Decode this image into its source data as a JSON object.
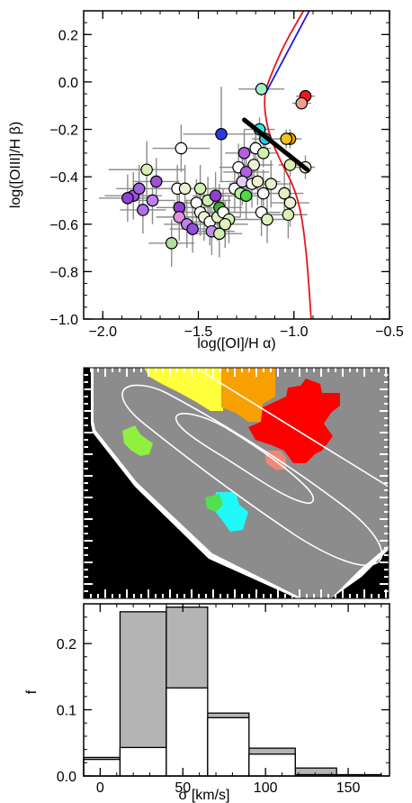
{
  "chart_data": [
    {
      "id": "bpt",
      "type": "scatter",
      "xlabel": "log([OI]/H α)",
      "ylabel": "log([OIII]/H β)",
      "xlim": [
        -2.1,
        -0.5
      ],
      "ylim": [
        -1.0,
        0.3
      ],
      "xticks": [
        -2.0,
        -1.5,
        -1.0,
        -0.5
      ],
      "xtick_labels": [
        "−2.0",
        "−1.5",
        "−1.0",
        "−0.5"
      ],
      "yticks": [
        -1.0,
        -0.8,
        -0.6,
        -0.4,
        -0.2,
        0.0,
        0.2
      ],
      "ytick_labels": [
        "−1.0",
        "−0.8",
        "−0.6",
        "−0.4",
        "−0.2",
        "0.0",
        "0.2"
      ],
      "colors": {
        "demarcation": "#e8141e",
        "seyfert_liner": "#1a1adc",
        "fit": "#000000",
        "errorbar": "#8c8c8c"
      },
      "demarcation_curve": [
        [
          -0.95,
          0.3
        ],
        [
          -1.05,
          0.16
        ],
        [
          -1.12,
          0.03
        ],
        [
          -1.16,
          -0.06
        ],
        [
          -1.14,
          -0.2
        ],
        [
          -1.08,
          -0.32
        ],
        [
          -1.0,
          -0.44
        ],
        [
          -0.96,
          -0.56
        ],
        [
          -0.935,
          -0.72
        ],
        [
          -0.92,
          -0.88
        ],
        [
          -0.91,
          -1.0
        ]
      ],
      "seyfert_liner_line": [
        [
          -1.15,
          -0.05
        ],
        [
          -0.92,
          0.3
        ]
      ],
      "fit_line": [
        [
          -1.26,
          -0.16
        ],
        [
          -0.93,
          -0.37
        ]
      ],
      "points": [
        {
          "x": -0.94,
          "y": -0.06,
          "c": "#f01414",
          "xe": 0.05,
          "ye": 0.02
        },
        {
          "x": -0.96,
          "y": -0.09,
          "c": "#f0a090",
          "xe": 0.05,
          "ye": 0.02
        },
        {
          "x": -1.17,
          "y": -0.03,
          "c": "#a0f0c8",
          "xe": 0.12,
          "ye": 0.03
        },
        {
          "x": -1.38,
          "y": -0.22,
          "c": "#2838e8",
          "xe": 0.2,
          "ye": 0.2
        },
        {
          "x": -1.18,
          "y": -0.2,
          "c": "#2ee8e8",
          "xe": 0.08,
          "ye": 0.05
        },
        {
          "x": -1.15,
          "y": -0.24,
          "c": "#30c8d8",
          "xe": 0.07,
          "ye": 0.05
        },
        {
          "x": -1.02,
          "y": -0.24,
          "c": "#f0a000",
          "xe": 0.06,
          "ye": 0.04
        },
        {
          "x": -1.04,
          "y": -0.24,
          "c": "#f0c020",
          "xe": 0.06,
          "ye": 0.04
        },
        {
          "x": -1.2,
          "y": -0.28,
          "c": "#ffffff",
          "xe": 0.08,
          "ye": 0.06
        },
        {
          "x": -1.16,
          "y": -0.3,
          "c": "#d0f0b0",
          "xe": 0.08,
          "ye": 0.06
        },
        {
          "x": -1.02,
          "y": -0.35,
          "c": "#d8f0b0",
          "xe": 0.06,
          "ye": 0.05
        },
        {
          "x": -0.94,
          "y": -0.36,
          "c": "#f0f0d0",
          "xe": 0.05,
          "ye": 0.05
        },
        {
          "x": -1.59,
          "y": -0.28,
          "c": "#ffffff",
          "xe": 0.15,
          "ye": 0.1
        },
        {
          "x": -1.77,
          "y": -0.37,
          "c": "#d8f0b0",
          "xe": 0.2,
          "ye": 0.12
        },
        {
          "x": -1.29,
          "y": -0.36,
          "c": "#ffffff",
          "xe": 0.1,
          "ye": 0.1
        },
        {
          "x": -1.21,
          "y": -0.35,
          "c": "#f0f0d8",
          "xe": 0.1,
          "ye": 0.1
        },
        {
          "x": -1.25,
          "y": -0.38,
          "c": "#b060e0",
          "xe": 0.12,
          "ye": 0.1
        },
        {
          "x": -1.84,
          "y": -0.48,
          "c": "#a050e0",
          "xe": 0.15,
          "ye": 0.1
        },
        {
          "x": -1.87,
          "y": -0.49,
          "c": "#9040d8",
          "xe": 0.15,
          "ye": 0.1
        },
        {
          "x": -1.81,
          "y": -0.45,
          "c": "#a060e0",
          "xe": 0.12,
          "ye": 0.1
        },
        {
          "x": -1.74,
          "y": -0.5,
          "c": "#c080f0",
          "xe": 0.12,
          "ye": 0.1
        },
        {
          "x": -1.79,
          "y": -0.54,
          "c": "#b070e8",
          "xe": 0.12,
          "ye": 0.1
        },
        {
          "x": -1.72,
          "y": -0.42,
          "c": "#a050d8",
          "xe": 0.12,
          "ye": 0.1
        },
        {
          "x": -1.61,
          "y": -0.45,
          "c": "#ffffff",
          "xe": 0.12,
          "ye": 0.1
        },
        {
          "x": -1.57,
          "y": -0.45,
          "c": "#f0f0d0",
          "xe": 0.12,
          "ye": 0.1
        },
        {
          "x": -1.6,
          "y": -0.53,
          "c": "#9040d0",
          "xe": 0.12,
          "ye": 0.1
        },
        {
          "x": -1.6,
          "y": -0.57,
          "c": "#e090e0",
          "xe": 0.12,
          "ye": 0.1
        },
        {
          "x": -1.56,
          "y": -0.6,
          "c": "#c080e8",
          "xe": 0.12,
          "ye": 0.1
        },
        {
          "x": -1.53,
          "y": -0.62,
          "c": "#9050d8",
          "xe": 0.12,
          "ye": 0.1
        },
        {
          "x": -1.64,
          "y": -0.68,
          "c": "#b0e0a0",
          "xe": 0.12,
          "ye": 0.1
        },
        {
          "x": -1.51,
          "y": -0.51,
          "c": "#ffffff",
          "xe": 0.12,
          "ye": 0.1
        },
        {
          "x": -1.49,
          "y": -0.45,
          "c": "#d0f0b0",
          "xe": 0.12,
          "ye": 0.1
        },
        {
          "x": -1.49,
          "y": -0.55,
          "c": "#ffffff",
          "xe": 0.12,
          "ye": 0.1
        },
        {
          "x": -1.47,
          "y": -0.57,
          "c": "#f0f0d8",
          "xe": 0.12,
          "ye": 0.1
        },
        {
          "x": -1.45,
          "y": -0.5,
          "c": "#d0f0b0",
          "xe": 0.12,
          "ye": 0.1
        },
        {
          "x": -1.44,
          "y": -0.59,
          "c": "#ffffff",
          "xe": 0.12,
          "ye": 0.1
        },
        {
          "x": -1.41,
          "y": -0.48,
          "c": "#9040d0",
          "xe": 0.12,
          "ye": 0.1
        },
        {
          "x": -1.43,
          "y": -0.63,
          "c": "#c090e8",
          "xe": 0.12,
          "ye": 0.1
        },
        {
          "x": -1.4,
          "y": -0.57,
          "c": "#e0f0c0",
          "xe": 0.12,
          "ye": 0.1
        },
        {
          "x": -1.39,
          "y": -0.53,
          "c": "#40a830",
          "xe": 0.12,
          "ye": 0.1
        },
        {
          "x": -1.37,
          "y": -0.55,
          "c": "#ffffff",
          "xe": 0.12,
          "ye": 0.1
        },
        {
          "x": -1.34,
          "y": -0.58,
          "c": "#d0f0b0",
          "xe": 0.12,
          "ye": 0.1
        },
        {
          "x": -1.36,
          "y": -0.6,
          "c": "#e0f0c0",
          "xe": 0.12,
          "ye": 0.1
        },
        {
          "x": -1.39,
          "y": -0.64,
          "c": "#d0f0b0",
          "xe": 0.12,
          "ye": 0.1
        },
        {
          "x": -1.31,
          "y": -0.45,
          "c": "#ffffff",
          "xe": 0.12,
          "ye": 0.1
        },
        {
          "x": -1.28,
          "y": -0.47,
          "c": "#b0f0a0",
          "xe": 0.12,
          "ye": 0.1
        },
        {
          "x": -1.25,
          "y": -0.48,
          "c": "#50d840",
          "xe": 0.12,
          "ye": 0.1
        },
        {
          "x": -1.27,
          "y": -0.42,
          "c": "#e0d0f0",
          "xe": 0.12,
          "ye": 0.1
        },
        {
          "x": -1.22,
          "y": -0.43,
          "c": "#ffffff",
          "xe": 0.12,
          "ye": 0.1
        },
        {
          "x": -1.19,
          "y": -0.42,
          "c": "#f0f0d0",
          "xe": 0.12,
          "ye": 0.1
        },
        {
          "x": -1.16,
          "y": -0.47,
          "c": "#ffffff",
          "xe": 0.12,
          "ye": 0.1
        },
        {
          "x": -1.12,
          "y": -0.43,
          "c": "#e8f0d0",
          "xe": 0.1,
          "ye": 0.1
        },
        {
          "x": -1.17,
          "y": -0.55,
          "c": "#ffffff",
          "xe": 0.1,
          "ye": 0.1
        },
        {
          "x": -1.14,
          "y": -0.58,
          "c": "#e0f0c0",
          "xe": 0.1,
          "ye": 0.1
        },
        {
          "x": -1.05,
          "y": -0.47,
          "c": "#e0f0c0",
          "xe": 0.1,
          "ye": 0.1
        },
        {
          "x": -1.02,
          "y": -0.51,
          "c": "#f0f0d8",
          "xe": 0.1,
          "ye": 0.1
        },
        {
          "x": -1.03,
          "y": -0.56,
          "c": "#d8f0b0",
          "xe": 0.1,
          "ye": 0.1
        },
        {
          "x": -1.26,
          "y": -0.3,
          "c": "#b060e0",
          "xe": 0.1,
          "ye": 0.1
        }
      ]
    },
    {
      "id": "map",
      "type": "heatmap",
      "colors": {
        "background": "#000000",
        "ring": "#ffffff",
        "disk": "#8c8c8c",
        "contour": "#ffffff"
      },
      "regions": [
        {
          "name": "yellow",
          "c": "#ffff3c"
        },
        {
          "name": "orange",
          "c": "#f8a000"
        },
        {
          "name": "red",
          "c": "#ff0000"
        },
        {
          "name": "salmon",
          "c": "#f08878"
        },
        {
          "name": "light-green",
          "c": "#90f040"
        },
        {
          "name": "cyan",
          "c": "#20f8f8"
        },
        {
          "name": "green",
          "c": "#50e050"
        }
      ]
    },
    {
      "id": "hist",
      "type": "bar",
      "xlabel": "σ [km/s]",
      "ylabel": "f",
      "xlim": [
        -10,
        175
      ],
      "ylim": [
        0,
        0.26
      ],
      "xticks": [
        0,
        50,
        100,
        150
      ],
      "xtick_labels": [
        "0",
        "50",
        "100",
        "150"
      ],
      "yticks": [
        0.0,
        0.1,
        0.2
      ],
      "ytick_labels": [
        "0.0",
        "0.1",
        "0.2"
      ],
      "bin_edges": [
        -10,
        12,
        40,
        65,
        90,
        118,
        143,
        170
      ],
      "series": [
        {
          "values": [
            0.028,
            0.248,
            0.255,
            0.095,
            0.042,
            0.012,
            0.002
          ],
          "color": "#b4b4b4"
        },
        {
          "values": [
            0.025,
            0.043,
            0.133,
            0.088,
            0.033,
            0.002,
            0.0
          ],
          "color": "#ffffff"
        }
      ]
    }
  ]
}
